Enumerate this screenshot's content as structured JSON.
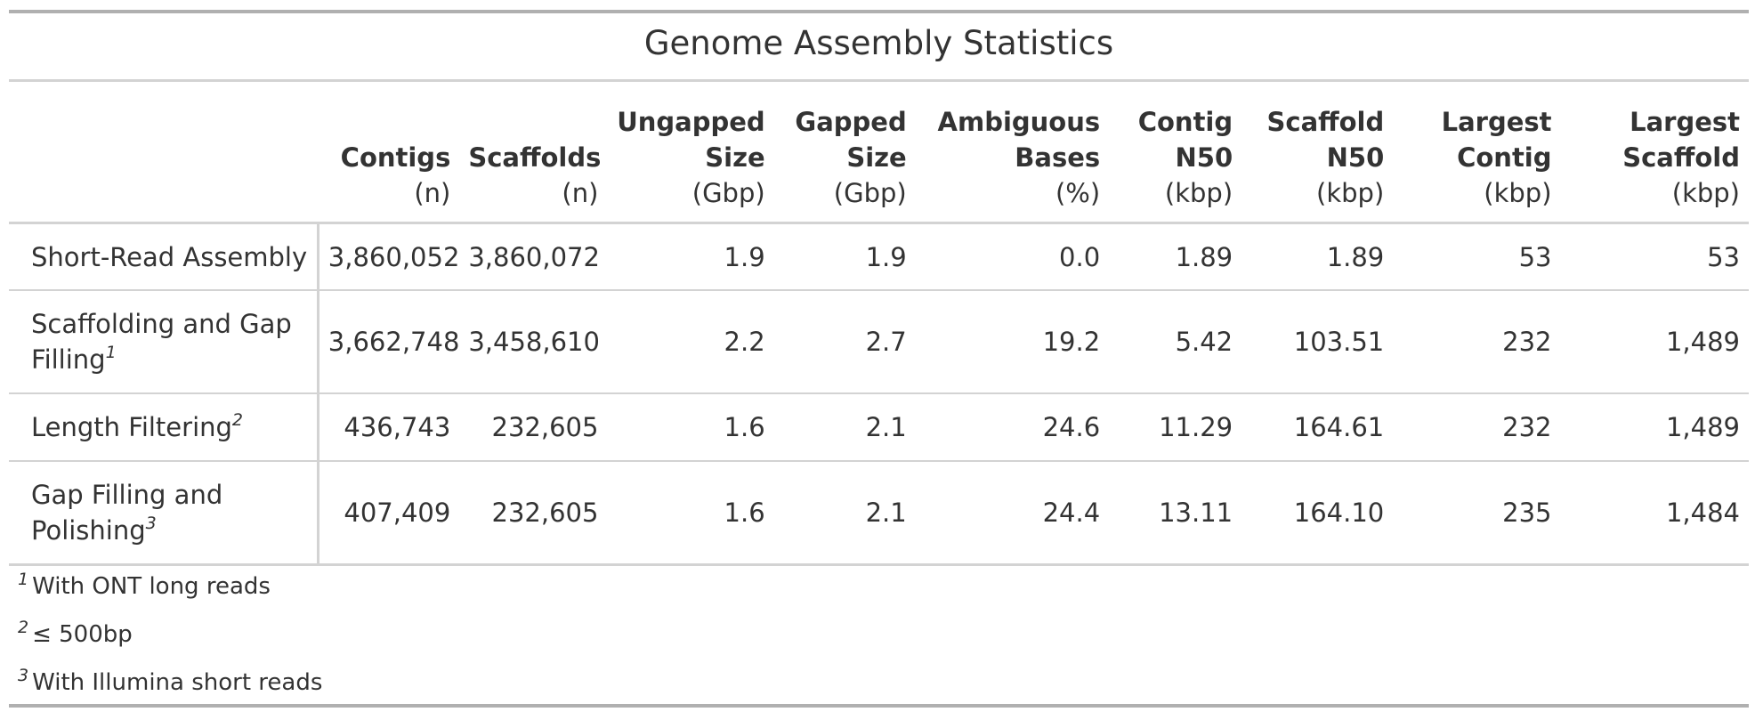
{
  "title": "Genome Assembly Statistics",
  "columns": [
    {
      "name": "",
      "unit": ""
    },
    {
      "name": "Contigs",
      "unit": "(n)"
    },
    {
      "name": "Scaffolds",
      "unit": "(n)"
    },
    {
      "name": "Ungapped Size",
      "unit": "(Gbp)"
    },
    {
      "name": "Gapped Size",
      "unit": "(Gbp)"
    },
    {
      "name": "Ambiguous Bases",
      "unit": "(%)"
    },
    {
      "name": "Contig N50",
      "unit": "(kbp)"
    },
    {
      "name": "Scaffold N50",
      "unit": "(kbp)"
    },
    {
      "name": "Largest Contig",
      "unit": "(kbp)"
    },
    {
      "name": "Largest Scaffold",
      "unit": "(kbp)"
    }
  ],
  "rows": [
    {
      "label": "Short-Read Assembly",
      "note": "",
      "values": [
        "3,860,052",
        "3,860,072",
        "1.9",
        "1.9",
        "0.0",
        "1.89",
        "1.89",
        "53",
        "53"
      ]
    },
    {
      "label": "Scaffolding and Gap Filling",
      "note": "1",
      "values": [
        "3,662,748",
        "3,458,610",
        "2.2",
        "2.7",
        "19.2",
        "5.42",
        "103.51",
        "232",
        "1,489"
      ]
    },
    {
      "label": "Length Filtering",
      "note": "2",
      "values": [
        "436,743",
        "232,605",
        "1.6",
        "2.1",
        "24.6",
        "11.29",
        "164.61",
        "232",
        "1,489"
      ]
    },
    {
      "label": "Gap Filling and Polishing",
      "note": "3",
      "values": [
        "407,409",
        "232,605",
        "1.6",
        "2.1",
        "24.4",
        "13.11",
        "164.10",
        "235",
        "1,484"
      ]
    }
  ],
  "footnotes": [
    {
      "mark": "1",
      "text": "With ONT long reads"
    },
    {
      "mark": "2",
      "text": "≤ 500bp"
    },
    {
      "mark": "3",
      "text": "With Illumina short reads"
    }
  ]
}
